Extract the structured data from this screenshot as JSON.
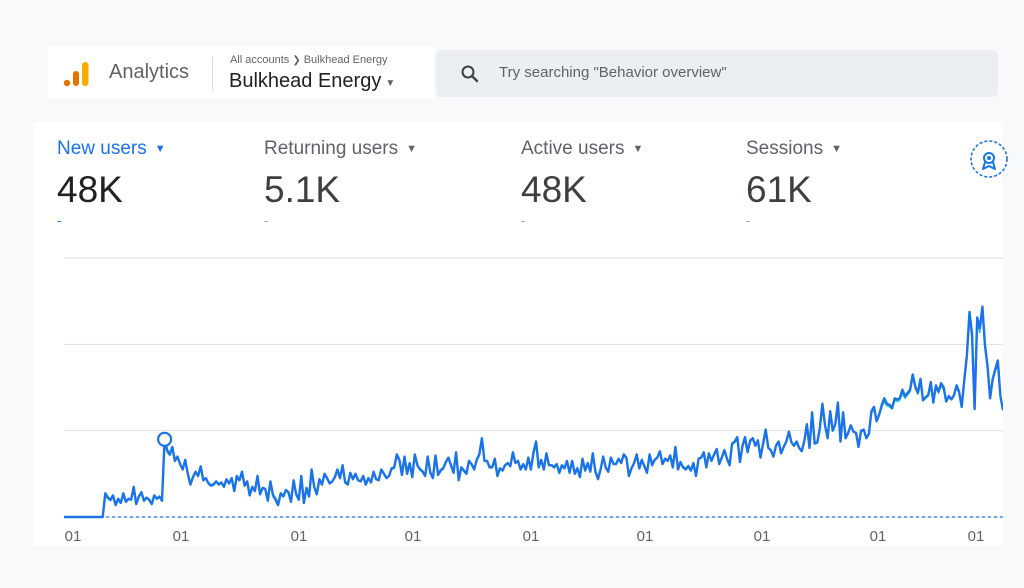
{
  "header": {
    "app_name": "Analytics",
    "breadcrumb": {
      "parent": "All accounts",
      "current": "Bulkhead Energy"
    },
    "account_name": "Bulkhead Energy",
    "logo_icon": "analytics-bars-icon",
    "dropdown_icon": "caret-down-icon"
  },
  "search": {
    "placeholder": "Try searching \"Behavior overview\"",
    "icon": "search-icon"
  },
  "metrics": [
    {
      "label": "New users",
      "value": "48K",
      "change": "-",
      "selected": true
    },
    {
      "label": "Returning users",
      "value": "5.1K",
      "change": "-",
      "selected": false
    },
    {
      "label": "Active users",
      "value": "48K",
      "change": "-",
      "selected": false
    },
    {
      "label": "Sessions",
      "value": "61K",
      "change": "-",
      "selected": false
    }
  ],
  "insights_icon": "insights-badge-icon",
  "colors": {
    "accent": "#1a73e8",
    "series_primary": "#1a73e8",
    "series_secondary": "#34c3d4",
    "gridline": "#e0e0e0",
    "text_muted": "#5f6368"
  },
  "chart_data": {
    "type": "line",
    "title": "",
    "xlabel": "",
    "ylabel": "",
    "x_tick_labels": [
      "01",
      "01",
      "01",
      "01",
      "01",
      "01",
      "01",
      "01",
      "01"
    ],
    "grid": true,
    "y_gridlines": 4,
    "legend": "none",
    "series": [
      {
        "values": [
          0,
          0,
          0,
          0,
          0,
          0,
          0,
          0,
          0,
          0,
          0,
          0,
          0,
          0,
          0,
          0,
          22,
          18,
          16,
          20,
          11,
          17,
          13,
          22,
          14,
          17,
          16,
          28,
          12,
          19,
          23,
          15,
          18,
          16,
          12,
          20,
          17,
          19,
          15,
          72,
          62,
          58,
          65,
          52,
          56,
          49,
          44,
          53,
          40,
          30,
          37,
          42,
          38,
          47,
          34,
          36,
          31,
          29,
          30,
          33,
          30,
          32,
          28,
          35,
          31,
          36,
          24,
          38,
          34,
          42,
          29,
          33,
          20,
          28,
          24,
          38,
          21,
          27,
          26,
          15,
          33,
          20,
          16,
          11,
          22,
          19,
          25,
          23,
          14,
          34,
          21,
          16,
          38,
          13,
          27,
          19,
          44,
          28,
          21,
          35,
          30,
          40,
          36,
          31,
          33,
          37,
          44,
          36,
          48,
          32,
          30,
          41,
          35,
          40,
          34,
          33,
          38,
          30,
          36,
          32,
          42,
          35,
          34,
          44,
          40,
          36,
          38,
          45,
          46,
          58,
          53,
          39,
          56,
          40,
          50,
          37,
          58,
          48,
          44,
          42,
          38,
          56,
          41,
          36,
          57,
          39,
          43,
          45,
          51,
          55,
          48,
          41,
          60,
          34,
          46,
          43,
          40,
          52,
          49,
          44,
          53,
          58,
          73,
          52,
          52,
          46,
          46,
          54,
          38,
          45,
          43,
          48,
          50,
          47,
          60,
          50,
          52,
          44,
          49,
          44,
          55,
          44,
          60,
          70,
          46,
          53,
          44,
          59,
          48,
          48,
          46,
          49,
          41,
          48,
          45,
          52,
          41,
          52,
          40,
          45,
          37,
          54,
          43,
          50,
          42,
          59,
          42,
          35,
          44,
          56,
          46,
          42,
          55,
          49,
          49,
          54,
          50,
          58,
          55,
          38,
          45,
          50,
          58,
          45,
          53,
          47,
          41,
          58,
          48,
          53,
          55,
          61,
          49,
          54,
          52,
          57,
          46,
          65,
          44,
          51,
          46,
          44,
          47,
          43,
          50,
          38,
          54,
          55,
          60,
          46,
          59,
          52,
          58,
          63,
          49,
          55,
          62,
          54,
          48,
          68,
          70,
          74,
          51,
          66,
          74,
          60,
          71,
          73,
          66,
          71,
          55,
          68,
          81,
          64,
          62,
          56,
          66,
          70,
          59,
          65,
          70,
          79,
          69,
          66,
          70,
          64,
          61,
          71,
          86,
          64,
          97,
          68,
          69,
          82,
          105,
          85,
          73,
          98,
          80,
          86,
          106,
          70,
          97,
          73,
          78,
          85,
          79,
          78,
          65,
          80,
          81,
          73,
          77,
          98,
          102,
          89,
          95,
          104,
          110,
          105,
          104,
          101,
          110,
          109,
          110,
          118,
          112,
          115,
          118,
          132,
          121,
          115,
          128,
          108,
          111,
          113,
          125,
          106,
          122,
          116,
          124,
          120,
          107,
          112,
          109,
          113,
          122,
          116,
          102,
          127,
          150,
          190,
          170,
          100,
          185,
          175,
          195,
          160,
          140,
          110,
          128,
          137,
          145,
          112,
          99
        ]
      },
      {
        "values": [
          0,
          0,
          0,
          0,
          0,
          0,
          0,
          0,
          0,
          0,
          0,
          0,
          0,
          0,
          0,
          0,
          20,
          17,
          15,
          19,
          12,
          16,
          14,
          21,
          15,
          16,
          16,
          26,
          13,
          18,
          22,
          16,
          18,
          16,
          13,
          19,
          17,
          18,
          16,
          68,
          60,
          57,
          63,
          52,
          55,
          49,
          45,
          52,
          41,
          32,
          37,
          41,
          38,
          46,
          35,
          36,
          32,
          30,
          31,
          33,
          31,
          32,
          29,
          34,
          31,
          35,
          26,
          37,
          34,
          40,
          30,
          33,
          22,
          28,
          25,
          37,
          23,
          27,
          26,
          17,
          32,
          21,
          18,
          13,
          22,
          20,
          25,
          23,
          16,
          33,
          22,
          18,
          37,
          15,
          27,
          20,
          42,
          28,
          22,
          34,
          31,
          39,
          35,
          32,
          33,
          37,
          43,
          36,
          47,
          33,
          31,
          40,
          35,
          40,
          34,
          34,
          38,
          31,
          36,
          33,
          41,
          35,
          35,
          43,
          40,
          37,
          38,
          44,
          45,
          56,
          52,
          40,
          55,
          41,
          50,
          38,
          57,
          48,
          45,
          43,
          39,
          55,
          42,
          37,
          56,
          40,
          44,
          46,
          51,
          54,
          48,
          42,
          58,
          36,
          46,
          44,
          41,
          51,
          49,
          45,
          52,
          57,
          70,
          52,
          52,
          47,
          47,
          53,
          40,
          45,
          44,
          48,
          50,
          47,
          58,
          50,
          52,
          45,
          49,
          45,
          54,
          45,
          58,
          68,
          47,
          53,
          45,
          58,
          48,
          48,
          47,
          49,
          42,
          48,
          46,
          51,
          42,
          51,
          41,
          46,
          38,
          53,
          44,
          50,
          43,
          58,
          43,
          37,
          45,
          55,
          46,
          43,
          54,
          49,
          49,
          53,
          50,
          57,
          54,
          40,
          46,
          50,
          57,
          46,
          53,
          48,
          42,
          57,
          49,
          53,
          55,
          60,
          50,
          54,
          52,
          56,
          47,
          63,
          45,
          51,
          47,
          45,
          48,
          44,
          50,
          40,
          54,
          55,
          59,
          47,
          58,
          52,
          57,
          62,
          50,
          55,
          61,
          54,
          49,
          67,
          69,
          72,
          52,
          65,
          72,
          60,
          70,
          72,
          66,
          70,
          56,
          67,
          79,
          64,
          62,
          57,
          66,
          69,
          60,
          65,
          70,
          77,
          69,
          66,
          70,
          64,
          62,
          70,
          84,
          65,
          94,
          68,
          69,
          80,
          102,
          84,
          73,
          96,
          80,
          85,
          103,
          71,
          95,
          74,
          78,
          84,
          79,
          78,
          66,
          79,
          80,
          74,
          77,
          96,
          100,
          88,
          94,
          102,
          107,
          103,
          102,
          100,
          108,
          107,
          108,
          115,
          110,
          113,
          116,
          129,
          119,
          114,
          126,
          108,
          110,
          112,
          122,
          106,
          120,
          115,
          122,
          118,
          107,
          111,
          109,
          112,
          120,
          115,
          103,
          125,
          146,
          184,
          166,
          101,
          180,
          171,
          190,
          157,
          138,
          110,
          127,
          135,
          142,
          112,
          100
        ]
      }
    ],
    "highlighted_points": [
      39,
      381
    ]
  }
}
